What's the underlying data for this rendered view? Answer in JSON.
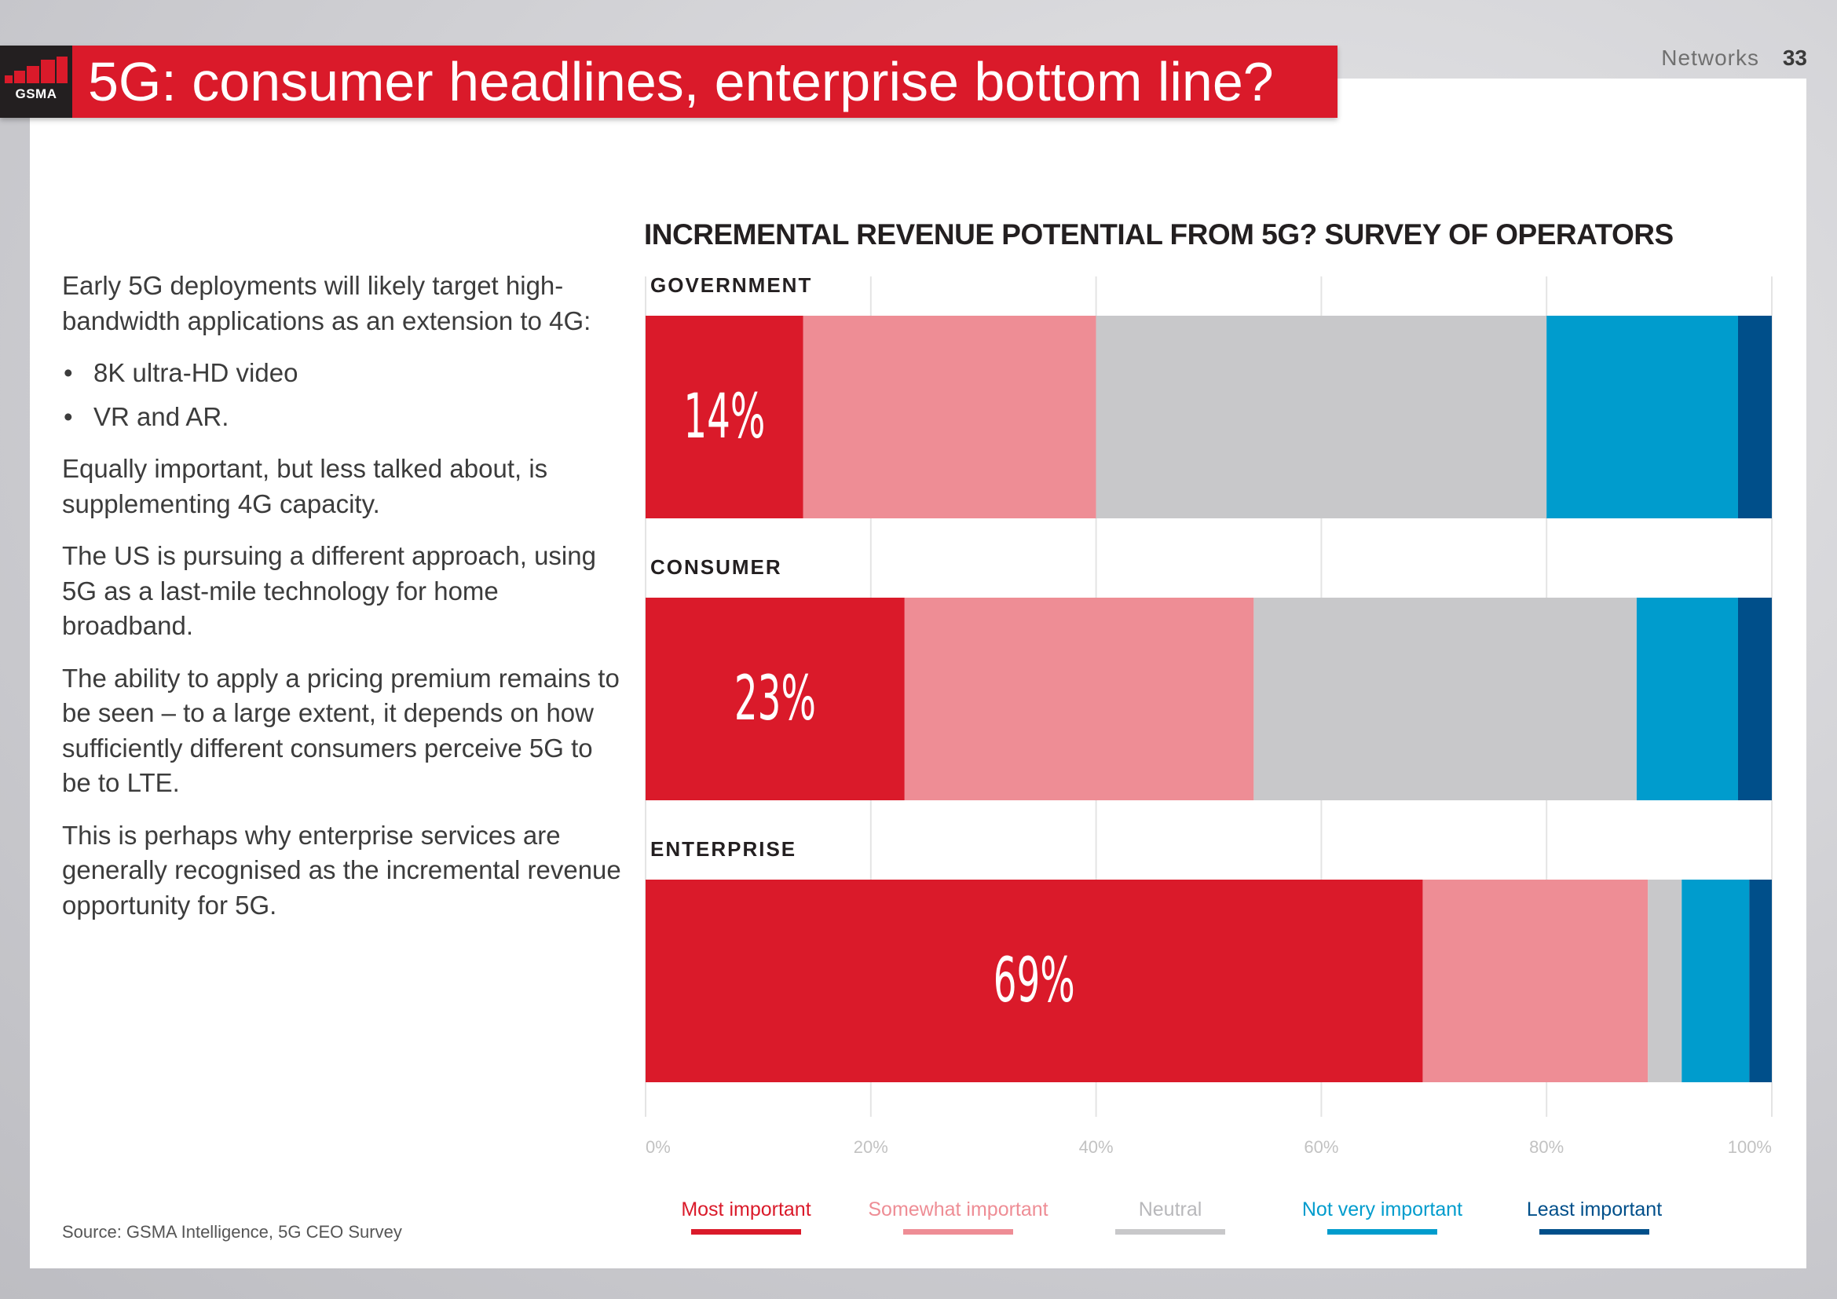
{
  "header": {
    "logo": "GSMA",
    "title": "5G: consumer headlines, enterprise bottom line?",
    "section": "Networks",
    "page_number": "33"
  },
  "body": {
    "p1": "Early 5G deployments will likely target high-bandwidth applications as an extension to 4G:",
    "bullets": [
      "8K ultra-HD video",
      "VR and AR."
    ],
    "p2": "Equally important, but less talked about, is supplementing 4G capacity.",
    "p3": "The US is pursuing a different approach, using 5G as a last-mile technology for home broadband.",
    "p4": "The ability to apply a pricing premium remains to be seen – to a large extent, it depends on how sufficiently different consumers perceive 5G to be to LTE.",
    "p5": "This is perhaps why enterprise services are generally recognised as the incremental revenue opportunity for 5G."
  },
  "source": "Source: GSMA Intelligence, 5G CEO Survey",
  "chart_data": {
    "type": "bar",
    "orientation": "horizontal",
    "stacked": true,
    "title": "INCREMENTAL REVENUE POTENTIAL FROM 5G? SURVEY OF OPERATORS",
    "categories": [
      "GOVERNMENT",
      "CONSUMER",
      "ENTERPRISE"
    ],
    "series": [
      {
        "name": "Most important",
        "color": "#da1a2a",
        "values": [
          14,
          23,
          69
        ]
      },
      {
        "name": "Somewhat important",
        "color": "#ee8d95",
        "values": [
          26,
          31,
          20
        ]
      },
      {
        "name": "Neutral",
        "color": "#c8c8ca",
        "values": [
          40,
          34,
          3
        ]
      },
      {
        "name": "Not very important",
        "color": "#009ccd",
        "values": [
          17,
          9,
          6
        ]
      },
      {
        "name": "Least important",
        "color": "#004f8a",
        "values": [
          3,
          3,
          2
        ]
      }
    ],
    "data_labels": [
      "14%",
      "23%",
      "69%"
    ],
    "x_ticks": [
      "0%",
      "20%",
      "40%",
      "60%",
      "80%",
      "100%"
    ],
    "xlim": [
      0,
      100
    ],
    "grid": true,
    "legend_position": "bottom"
  }
}
